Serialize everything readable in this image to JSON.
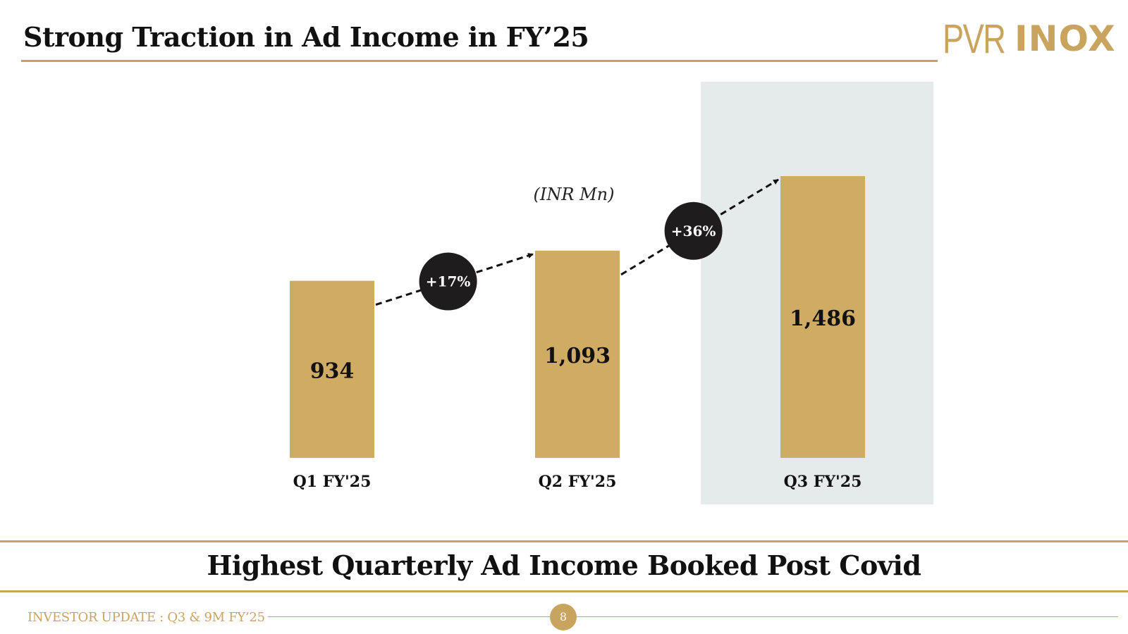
{
  "slide": {
    "title": "Strong Traction in Ad Income in FY’25",
    "banner": "Highest Quarterly Ad Income Booked Post Covid",
    "footer_label": "INVESTOR UPDATE : Q3 & 9M FY’25",
    "page_number": "8"
  },
  "logo": {
    "pvr": "PVR",
    "inox": "INOX",
    "color": "#c9a45e"
  },
  "colors": {
    "accent": "#c9a45e",
    "bar": "#cfab63",
    "highlight": "#e5eaea",
    "badge": "#1f1c1d"
  },
  "chart_data": {
    "type": "bar",
    "title": "",
    "unit_note": "(INR Mn)",
    "categories": [
      "Q1 FY'25",
      "Q2 FY'25",
      "Q3 FY'25"
    ],
    "values": [
      934,
      1093,
      1486
    ],
    "value_labels": [
      "934",
      "1,093",
      "1,486"
    ],
    "highlight_category": "Q3 FY'25",
    "growth_annotations": [
      {
        "from": "Q1 FY'25",
        "to": "Q2 FY'25",
        "label": "+17%"
      },
      {
        "from": "Q2 FY'25",
        "to": "Q3 FY'25",
        "label": "+36%"
      }
    ],
    "xlabel": "",
    "ylabel": "",
    "ylim": [
      0,
      1486
    ],
    "grid": false,
    "legend": "none"
  }
}
